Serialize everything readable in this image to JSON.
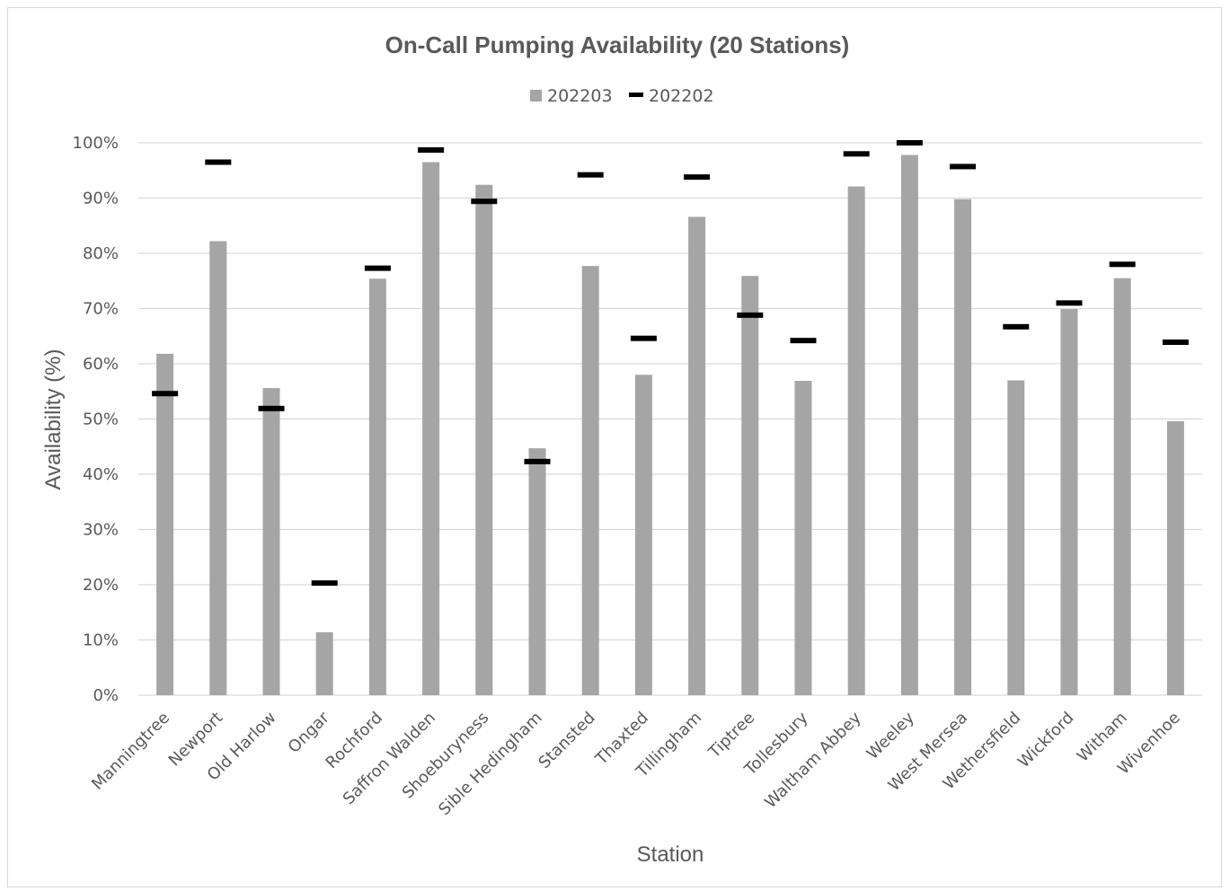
{
  "chart_data": {
    "type": "bar",
    "title": "On-Call Pumping Availability (20 Stations)",
    "xlabel": "Station",
    "ylabel": "Availability (%)",
    "ylim": [
      0,
      100
    ],
    "ytick_labels": [
      "0%",
      "10%",
      "20%",
      "30%",
      "40%",
      "50%",
      "60%",
      "70%",
      "80%",
      "90%",
      "100%"
    ],
    "grid": true,
    "legend_position": "top",
    "categories": [
      "Manningtree",
      "Newport",
      "Old Harlow",
      "Ongar",
      "Rochford",
      "Saffron Walden",
      "Shoeburyness",
      "Sible Hedingham",
      "Stansted",
      "Thaxted",
      "Tillingham",
      "Tiptree",
      "Tollesbury",
      "Waltham Abbey",
      "Weeley",
      "West Mersea",
      "Wethersfield",
      "Wickford",
      "Witham",
      "Wivenhoe"
    ],
    "series": [
      {
        "name": "202203",
        "kind": "bar",
        "color": "#a5a5a5",
        "values": [
          61.8,
          82.2,
          55.6,
          11.4,
          75.4,
          96.5,
          92.4,
          44.7,
          77.7,
          58.0,
          86.6,
          75.9,
          56.9,
          92.1,
          97.8,
          89.8,
          57.0,
          69.9,
          75.5,
          49.6
        ]
      },
      {
        "name": "202202",
        "kind": "marker",
        "color": "#000000",
        "values": [
          54.6,
          96.5,
          51.9,
          20.3,
          77.3,
          98.7,
          89.4,
          42.3,
          94.2,
          64.6,
          93.8,
          68.8,
          64.2,
          98.0,
          100.0,
          95.7,
          66.7,
          71.0,
          78.0,
          63.9
        ]
      }
    ]
  }
}
